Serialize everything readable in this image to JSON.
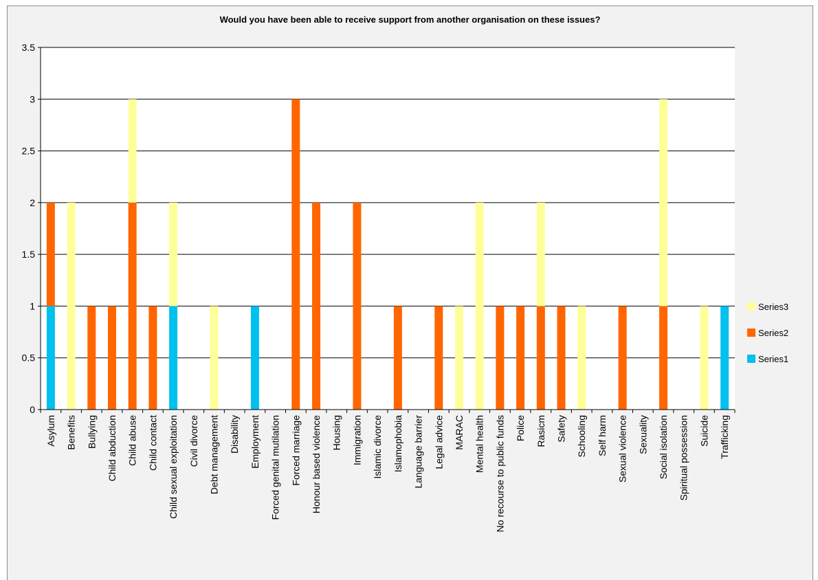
{
  "chart_data": {
    "type": "bar",
    "stacked": true,
    "title": "Would you have been able to receive support from another organisation on these issues?",
    "categories": [
      "Asylum",
      "Benefits",
      "Bullying",
      "Child abduction",
      "Child abuse",
      "Child contact",
      "Child sexual exploitation",
      "Civil divorce",
      "Debt management",
      "Disability",
      "Employment",
      "Forced genital mutilation",
      "Forced marriage",
      "Honour based violence",
      "Housing",
      "Immigration",
      "Islamic divorce",
      "Islamophobia",
      "Language barrier",
      "Legal advice",
      "MARAC",
      "Mental health",
      "No recourse to public funds",
      "Police",
      "Rasicm",
      "Safety",
      "Schooling",
      "Self harm",
      "Sexual violence",
      "Sexuality",
      "Social isolation",
      "Spiritual possession",
      "Suicide",
      "Trafficking"
    ],
    "series": [
      {
        "name": "Series1",
        "color": "#00c0f0",
        "values": [
          1,
          0,
          0,
          0,
          0,
          0,
          1,
          0,
          0,
          0,
          1,
          0,
          0,
          0,
          0,
          0,
          0,
          0,
          0,
          0,
          0,
          0,
          0,
          0,
          0,
          0,
          0,
          0,
          0,
          0,
          0,
          0,
          0,
          1
        ]
      },
      {
        "name": "Series2",
        "color": "#ff6600",
        "values": [
          1,
          0,
          1,
          1,
          2,
          1,
          0,
          0,
          0,
          0,
          0,
          0,
          3,
          2,
          0,
          2,
          0,
          1,
          0,
          1,
          0,
          0,
          1,
          1,
          1,
          1,
          0,
          0,
          1,
          0,
          1,
          0,
          0,
          0
        ]
      },
      {
        "name": "Series3",
        "color": "#ffff99",
        "values": [
          0,
          2,
          0,
          0,
          1,
          0,
          1,
          0,
          1,
          0,
          0,
          0,
          0,
          0,
          0,
          0,
          0,
          0,
          0,
          0,
          1,
          2,
          0,
          0,
          1,
          0,
          1,
          0,
          0,
          0,
          2,
          0,
          1,
          0
        ]
      }
    ],
    "yticks": [
      "0",
      "0.5",
      "1",
      "1.5",
      "2",
      "2.5",
      "3",
      "3.5"
    ],
    "ylim": [
      0,
      3.5
    ],
    "grid": true,
    "legend": "right",
    "legend_order": [
      "Series3",
      "Series2",
      "Series1"
    ]
  }
}
